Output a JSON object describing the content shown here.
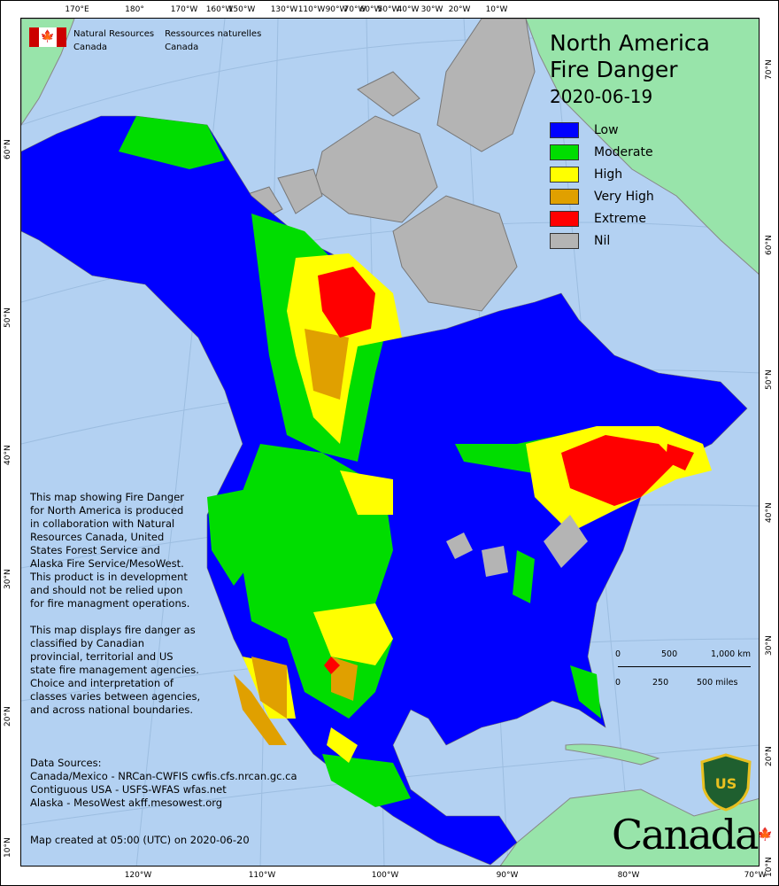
{
  "header": {
    "org_en": [
      "Natural Resources",
      "Canada"
    ],
    "org_fr": [
      "Ressources naturelles",
      "Canada"
    ]
  },
  "title": {
    "line1": "North America",
    "line2": "Fire Danger",
    "date": "2020-06-19"
  },
  "legend": [
    {
      "label": "Low",
      "color": "#0000ff"
    },
    {
      "label": "Moderate",
      "color": "#00dd00"
    },
    {
      "label": "High",
      "color": "#ffff00"
    },
    {
      "label": "Very High",
      "color": "#e0a000"
    },
    {
      "label": "Extreme",
      "color": "#ff0000"
    },
    {
      "label": "Nil",
      "color": "#b4b4b4"
    }
  ],
  "axes": {
    "top": [
      "170°E",
      "180°",
      "170°W",
      "160°W",
      "150°W",
      "130°W",
      "110°W",
      "90°W",
      "70°W",
      "60°W",
      "50°W",
      "40°W",
      "30°W",
      "20°W",
      "10°W"
    ],
    "bottom": [
      "120°W",
      "110°W",
      "100°W",
      "90°W",
      "80°W",
      "70°W"
    ],
    "left": [
      "60°N",
      "50°N",
      "40°N",
      "30°N",
      "20°N",
      "10°N"
    ],
    "right": [
      "70°N",
      "60°N",
      "50°N",
      "40°N",
      "30°N",
      "20°N",
      "10°N"
    ]
  },
  "notes": {
    "about": [
      "This map showing Fire Danger",
      "for North America is produced",
      "in collaboration with Natural",
      "Resources Canada, United",
      "States Forest Service and",
      "Alaska Fire Service/MesoWest.",
      "This product is in development",
      "and should not be relied upon",
      "for fire managment operations."
    ],
    "classes": [
      "This map displays fire danger as",
      "classified by Canadian",
      "provincial, territorial and US",
      "state fire management agencies.",
      "Choice and interpretation of",
      "classes varies between agencies,",
      "and across national boundaries."
    ],
    "sources_title": "Data Sources:",
    "sources": [
      "Canada/Mexico - NRCan-CWFIS cwfis.cfs.nrcan.gc.ca",
      "Contiguous USA - USFS-WFAS wfas.net",
      "Alaska - MesoWest akff.mesowest.org"
    ],
    "created": "Map created at 05:00 (UTC) on 2020-06-20"
  },
  "scale": {
    "km": [
      "0",
      "500",
      "1,000 km"
    ],
    "miles": [
      "0",
      "250",
      "500 miles"
    ]
  },
  "logos": {
    "usfs": "FOREST SERVICE U.S. DEPARTMENT OF AGRICULTURE",
    "wordmark": "Canada"
  },
  "colors": {
    "ocean": "#b3d1f2",
    "greenland": "#98e4aa",
    "nil": "#b4b4b4"
  }
}
